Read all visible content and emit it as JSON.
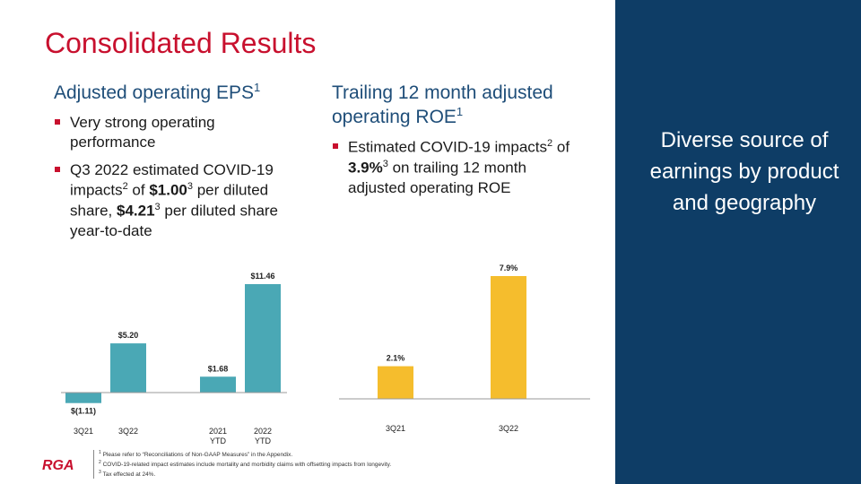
{
  "title": "Consolidated Results",
  "left_column": {
    "heading": "Adjusted operating EPS",
    "heading_note": "1",
    "bullet1": "Very strong operating performance",
    "bullet2": {
      "t1": "Q3 2022 estimated COVID-19 impacts",
      "n1": "2",
      "t2": " of ",
      "v1": "$1.00",
      "n2": "3",
      "t3": " per diluted share, ",
      "v2": "$4.21",
      "n3": "3",
      "t4": " per diluted share year-to-date"
    }
  },
  "middle_column": {
    "heading": "Trailing 12 month adjusted operating ROE",
    "heading_note": "1",
    "bullet1": {
      "t1": "Estimated COVID-19 impacts",
      "n1": "2",
      "t2": " of ",
      "v1": "3.9%",
      "n2": "3",
      "t3": " on trailing 12 month adjusted operating ROE"
    }
  },
  "right_panel": {
    "text": "Diverse source of earnings by product and geography"
  },
  "footnotes": {
    "f1_num": "1",
    "f1": "Please refer to “Reconciliations of Non-GAAP Measures” in the Appendix.",
    "f2_num": "2",
    "f2": "COVID-19-related impact estimates include mortality and morbidity claims with offsetting impacts from longevity.",
    "f3_num": "3",
    "f3": "Tax effected at 24%."
  },
  "logo_text": "RGA",
  "colors": {
    "title_red": "#c8102e",
    "heading_blue": "#1f4e79",
    "eps_bar": "#4aa8b5",
    "roe_bar": "#f5bd2d",
    "panel_navy": "#0e3d66"
  },
  "chart_data": [
    {
      "type": "bar",
      "categories": [
        [
          "3Q21"
        ],
        [
          "3Q22"
        ],
        [
          "2021",
          "YTD"
        ],
        [
          "2022",
          "YTD"
        ]
      ],
      "values": [
        -1.11,
        5.2,
        1.68,
        11.46
      ],
      "data_labels": [
        "$(1.11)",
        "$5.20",
        "$1.68",
        "$11.46"
      ],
      "gap_after_index": 1,
      "ylim": [
        -1.8,
        11.46
      ],
      "grid": false,
      "color": "#4aa8b5"
    },
    {
      "type": "bar",
      "categories": [
        [
          "3Q21"
        ],
        [
          "3Q22"
        ]
      ],
      "values": [
        2.1,
        7.9
      ],
      "data_labels": [
        "2.1%",
        "7.9%"
      ],
      "ylim": [
        0,
        7.9
      ],
      "grid": false,
      "color": "#f5bd2d"
    }
  ]
}
